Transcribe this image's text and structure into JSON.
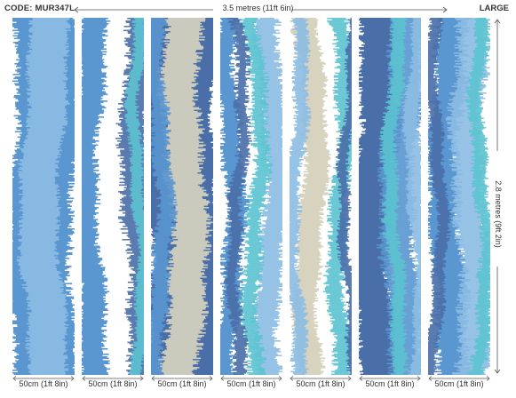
{
  "header": {
    "code": "CODE: MUR347L",
    "width_label": "3.5 metres (11ft 6in)",
    "size_label": "LARGE"
  },
  "height_label": "2.8 metres (9ft 2in)",
  "panels": [
    {
      "label": "50cm (1ft 8in)",
      "style": "sky"
    },
    {
      "label": "50cm (1ft 8in)",
      "style": "white-edge"
    },
    {
      "label": "50cm (1ft 8in)",
      "style": "navy-sand"
    },
    {
      "label": "50cm (1ft 8in)",
      "style": "white-teal"
    },
    {
      "label": "50cm (1ft 8in)",
      "style": "sand-teal"
    },
    {
      "label": "50cm (1ft 8in)",
      "style": "navy-sky"
    },
    {
      "label": "50cm (1ft 8in)",
      "style": "light-sky"
    }
  ],
  "colors": {
    "navy": "#4a6ea8",
    "sky": "#5a96cf",
    "light_sky": "#8cbde3",
    "teal": "#5cc3d0",
    "sand": "#d7d3bf",
    "white": "#ffffff",
    "text": "#333333"
  }
}
